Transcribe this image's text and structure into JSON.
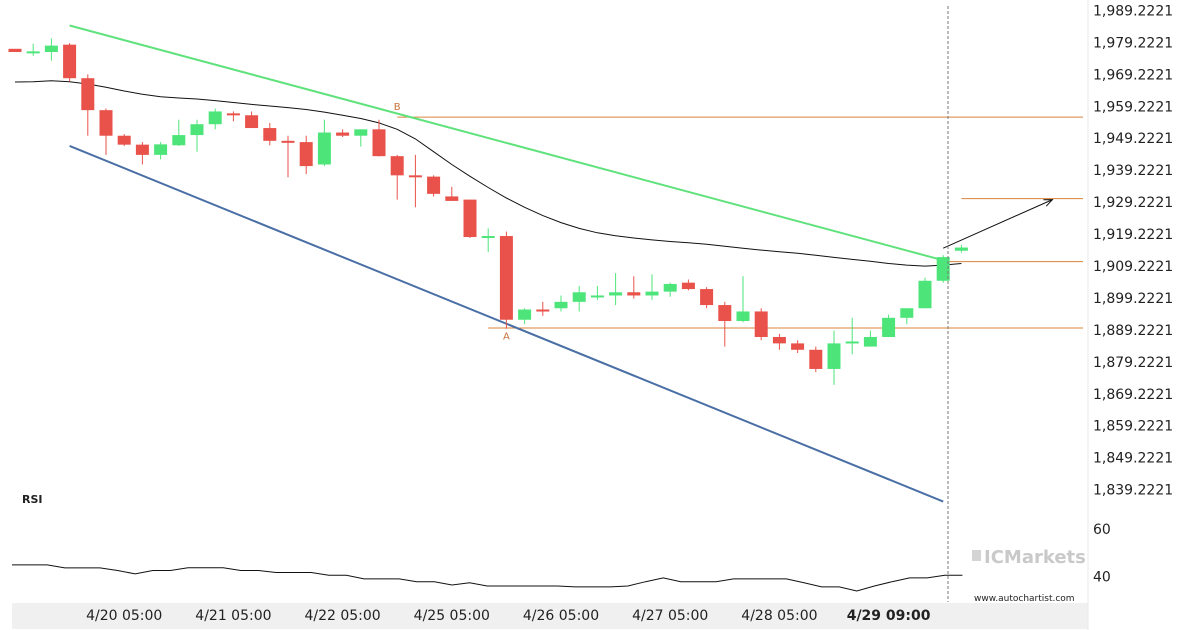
{
  "chart_data": {
    "type": "candlestick",
    "y_axis": {
      "ticks": [
        "1,989.2221",
        "1,979.2221",
        "1,969.2221",
        "1,959.2221",
        "1,949.2221",
        "1,939.2221",
        "1,929.2221",
        "1,919.2221",
        "1,909.2221",
        "1,899.2221",
        "1,889.2221",
        "1,879.2221",
        "1,869.2221",
        "1,859.2221",
        "1,849.2221",
        "1,839.2221"
      ],
      "range": [
        1831.6,
        1990.6
      ]
    },
    "x_axis": {
      "labels": [
        "4/20 05:00",
        "4/21 05:00",
        "4/22 05:00",
        "4/25 05:00",
        "4/26 05:00",
        "4/27 05:00",
        "4/28 05:00",
        "4/29 09:00"
      ],
      "label_bar_index": [
        6,
        12,
        18,
        24,
        30,
        36,
        42,
        48
      ],
      "bold_label": "4/29 09:00"
    },
    "candles": [
      {
        "o": 1977.2,
        "h": 1977.2,
        "l": 1976.2,
        "c": 1976.2
      },
      {
        "o": 1976.2,
        "h": 1978.8,
        "l": 1975.0,
        "c": 1976.4
      },
      {
        "o": 1976.2,
        "h": 1980.5,
        "l": 1973.5,
        "c": 1978.2
      },
      {
        "o": 1978.5,
        "h": 1979.0,
        "l": 1967.0,
        "c": 1968.0
      },
      {
        "o": 1968.0,
        "h": 1969.2,
        "l": 1950.0,
        "c": 1958.0
      },
      {
        "o": 1958.0,
        "h": 1958.5,
        "l": 1944.0,
        "c": 1950.0
      },
      {
        "o": 1950.0,
        "h": 1950.5,
        "l": 1946.8,
        "c": 1947.2
      },
      {
        "o": 1947.2,
        "h": 1948.0,
        "l": 1941.0,
        "c": 1944.0
      },
      {
        "o": 1944.0,
        "h": 1948.0,
        "l": 1942.6,
        "c": 1947.3
      },
      {
        "o": 1947.0,
        "h": 1955.0,
        "l": 1946.8,
        "c": 1950.2
      },
      {
        "o": 1950.2,
        "h": 1955.0,
        "l": 1945.0,
        "c": 1953.6
      },
      {
        "o": 1953.6,
        "h": 1958.5,
        "l": 1952.0,
        "c": 1957.6
      },
      {
        "o": 1957.0,
        "h": 1957.6,
        "l": 1954.5,
        "c": 1956.4
      },
      {
        "o": 1956.4,
        "h": 1957.6,
        "l": 1952.8,
        "c": 1952.4
      },
      {
        "o": 1952.4,
        "h": 1954.0,
        "l": 1947.0,
        "c": 1948.4
      },
      {
        "o": 1948.4,
        "h": 1950.0,
        "l": 1937.0,
        "c": 1948.0
      },
      {
        "o": 1948.0,
        "h": 1950.0,
        "l": 1938.0,
        "c": 1940.5
      },
      {
        "o": 1941.0,
        "h": 1955.0,
        "l": 1940.5,
        "c": 1951.0
      },
      {
        "o": 1951.0,
        "h": 1952.0,
        "l": 1949.6,
        "c": 1950.0
      },
      {
        "o": 1950.0,
        "h": 1952.0,
        "l": 1946.6,
        "c": 1952.0
      },
      {
        "o": 1952.0,
        "h": 1955.0,
        "l": 1943.5,
        "c": 1943.6
      },
      {
        "o": 1943.6,
        "h": 1944.0,
        "l": 1930.0,
        "c": 1937.6
      },
      {
        "o": 1937.6,
        "h": 1944.0,
        "l": 1927.6,
        "c": 1937.2
      },
      {
        "o": 1937.2,
        "h": 1937.6,
        "l": 1931.0,
        "c": 1931.8
      },
      {
        "o": 1931.0,
        "h": 1934.0,
        "l": 1929.6,
        "c": 1929.6
      },
      {
        "o": 1930.0,
        "h": 1930.0,
        "l": 1918.0,
        "c": 1918.3
      },
      {
        "o": 1918.0,
        "h": 1921.0,
        "l": 1913.6,
        "c": 1918.6
      },
      {
        "o": 1918.6,
        "h": 1920.0,
        "l": 1889.6,
        "c": 1892.4
      },
      {
        "o": 1892.4,
        "h": 1896.0,
        "l": 1891.0,
        "c": 1895.6
      },
      {
        "o": 1895.6,
        "h": 1898.0,
        "l": 1893.6,
        "c": 1895.0
      },
      {
        "o": 1896.0,
        "h": 1900.0,
        "l": 1895.0,
        "c": 1898.0
      },
      {
        "o": 1898.0,
        "h": 1903.0,
        "l": 1895.0,
        "c": 1901.0
      },
      {
        "o": 1900.0,
        "h": 1903.0,
        "l": 1898.6,
        "c": 1900.0
      },
      {
        "o": 1900.0,
        "h": 1907.0,
        "l": 1897.0,
        "c": 1901.0
      },
      {
        "o": 1901.0,
        "h": 1906.0,
        "l": 1899.0,
        "c": 1900.0
      },
      {
        "o": 1900.0,
        "h": 1906.6,
        "l": 1898.6,
        "c": 1901.2
      },
      {
        "o": 1901.2,
        "h": 1904.0,
        "l": 1899.6,
        "c": 1903.6
      },
      {
        "o": 1904.0,
        "h": 1905.0,
        "l": 1901.6,
        "c": 1902.0
      },
      {
        "o": 1902.0,
        "h": 1902.6,
        "l": 1896.0,
        "c": 1897.0
      },
      {
        "o": 1897.0,
        "h": 1898.0,
        "l": 1884.0,
        "c": 1892.0
      },
      {
        "o": 1892.0,
        "h": 1906.0,
        "l": 1891.6,
        "c": 1895.0
      },
      {
        "o": 1895.0,
        "h": 1896.0,
        "l": 1886.0,
        "c": 1887.0
      },
      {
        "o": 1887.0,
        "h": 1888.0,
        "l": 1883.0,
        "c": 1885.0
      },
      {
        "o": 1885.0,
        "h": 1886.0,
        "l": 1882.0,
        "c": 1883.0
      },
      {
        "o": 1883.0,
        "h": 1884.0,
        "l": 1876.0,
        "c": 1877.0
      },
      {
        "o": 1877.0,
        "h": 1889.0,
        "l": 1872.0,
        "c": 1885.0
      },
      {
        "o": 1885.0,
        "h": 1893.0,
        "l": 1881.6,
        "c": 1885.6
      },
      {
        "o": 1884.0,
        "h": 1889.0,
        "l": 1884.0,
        "c": 1887.0
      },
      {
        "o": 1887.0,
        "h": 1894.0,
        "l": 1887.0,
        "c": 1893.0
      },
      {
        "o": 1893.0,
        "h": 1896.0,
        "l": 1891.0,
        "c": 1896.0
      },
      {
        "o": 1896.0,
        "h": 1905.6,
        "l": 1896.0,
        "c": 1904.6
      },
      {
        "o": 1904.6,
        "h": 1912.6,
        "l": 1904.0,
        "c": 1912.0
      },
      {
        "o": 1914.0,
        "h": 1915.8,
        "l": 1913.4,
        "c": 1915.0
      }
    ],
    "moving_average": [
      1966.8,
      1966.9,
      1967.2,
      1966.9,
      1966.2,
      1965.2,
      1964.0,
      1963.0,
      1962.2,
      1961.8,
      1961.5,
      1961.0,
      1960.4,
      1959.8,
      1959.3,
      1958.8,
      1958.2,
      1957.4,
      1956.4,
      1955.4,
      1954.0,
      1952.0,
      1949.0,
      1945.0,
      1941.0,
      1937.3,
      1933.8,
      1930.5,
      1927.6,
      1925.0,
      1922.8,
      1921.0,
      1919.6,
      1918.7,
      1918.0,
      1917.4,
      1916.9,
      1916.5,
      1916.0,
      1915.4,
      1914.8,
      1914.2,
      1913.7,
      1913.2,
      1912.6,
      1911.9,
      1911.3,
      1910.7,
      1910.0,
      1909.5,
      1909.2,
      1909.5,
      1910.0
    ],
    "patterns": {
      "upper_line": {
        "from": [
          3,
          1984.5
        ],
        "to": [
          51,
          1911.0
        ],
        "color": "#5fe27c"
      },
      "lower_line": {
        "from": [
          3,
          1946.8
        ],
        "to": [
          51,
          1835.5
        ],
        "color": "#4a6fa5"
      },
      "resistance_levels": [
        {
          "value": 1955.8,
          "from_index": 21
        },
        {
          "value": 1889.8,
          "from_index": 26
        },
        {
          "value": 1910.6,
          "from_index": 51
        },
        {
          "value": 1930.3,
          "from_index": 52
        }
      ],
      "forecast_arrow": {
        "from": [
          51,
          1914.8
        ],
        "to": [
          57,
          1930.0
        ]
      },
      "pivot_labels": [
        {
          "text": "B",
          "index": 21,
          "value": 1958.0
        },
        {
          "text": "A",
          "index": 27,
          "value": 1886.2
        }
      ],
      "current_bar_index": 51
    },
    "rsi": {
      "title": "RSI",
      "ticks": [
        "60",
        "40"
      ],
      "range": [
        30,
        70
      ],
      "values": [
        44.8,
        44.8,
        44.8,
        43.5,
        43.5,
        43.5,
        42.4,
        41.0,
        42.4,
        42.4,
        43.6,
        43.6,
        43.6,
        42.4,
        42.4,
        41.6,
        41.6,
        41.6,
        40.4,
        40.4,
        38.9,
        38.9,
        38.9,
        37.7,
        37.7,
        36.3,
        37.3,
        35.9,
        35.9,
        35.9,
        35.9,
        35.9,
        35.5,
        35.5,
        35.5,
        35.9,
        37.7,
        39.3,
        37.7,
        37.7,
        37.7,
        38.9,
        38.9,
        38.9,
        38.9,
        37.3,
        35.5,
        35.5,
        33.8,
        35.9,
        37.7,
        39.3,
        39.3,
        40.4,
        40.4
      ]
    }
  },
  "watermark": {
    "brand": "ICMarkets",
    "url": "www.autochartist.com"
  },
  "colors": {
    "bull": "#4de57a",
    "bear": "#e8524a",
    "level": "#d9833b",
    "upper_trend": "#5fe27c",
    "lower_trend": "#4a6fa5",
    "ma": "#111111"
  }
}
